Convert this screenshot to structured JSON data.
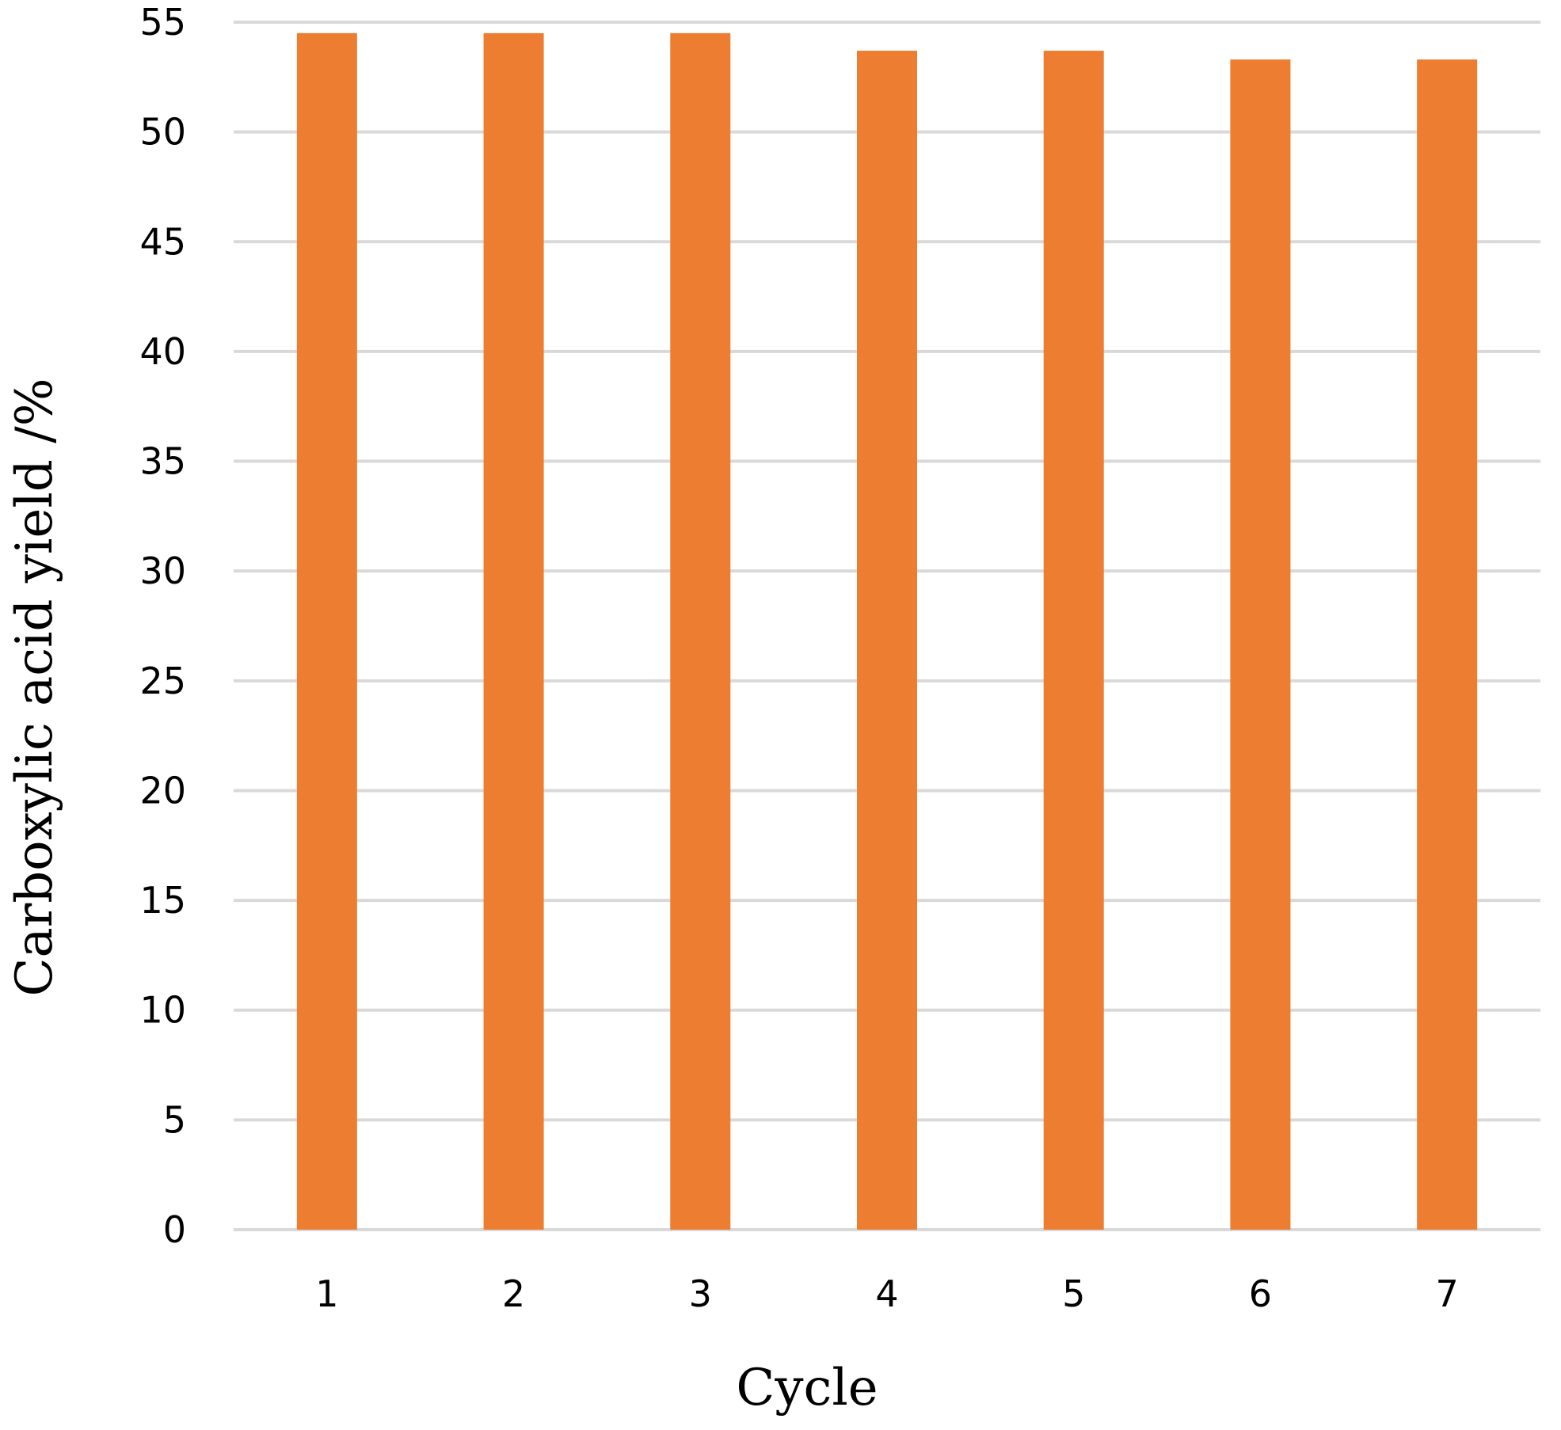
{
  "chart_data": {
    "type": "bar",
    "categories": [
      "1",
      "2",
      "3",
      "4",
      "5",
      "6",
      "7"
    ],
    "values": [
      54.5,
      54.5,
      54.5,
      53.7,
      53.7,
      53.3,
      53.3
    ],
    "title": "",
    "xlabel": "Cycle",
    "ylabel": "Carboxylic acid yield /%",
    "ylim": [
      0,
      55
    ],
    "yticks": [
      0,
      5,
      10,
      15,
      20,
      25,
      30,
      35,
      40,
      45,
      50,
      55
    ],
    "grid": true,
    "legend": "none",
    "colors": {
      "bar": "#ED7D31",
      "grid": "#D9D9D9"
    }
  }
}
